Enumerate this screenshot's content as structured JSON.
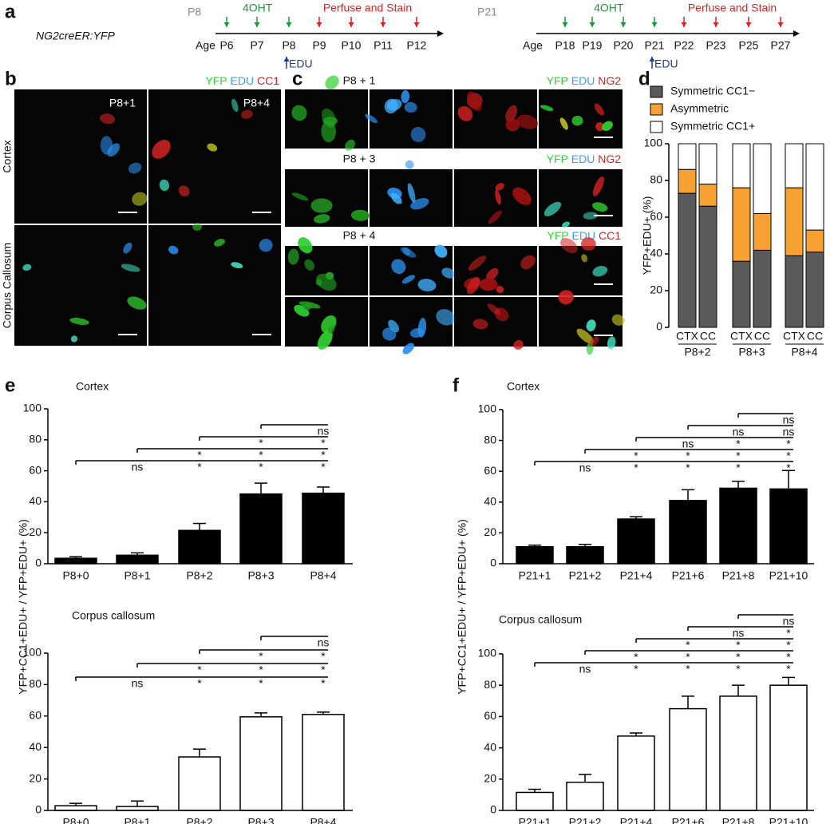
{
  "panel_a": {
    "label": "a",
    "genotype": "NG2creER:YFP",
    "timelines": [
      {
        "title": "P8",
        "injection": "4OHT",
        "perfusion": "Perfuse and Stain",
        "axis_label": "Age",
        "ages": [
          "P6",
          "P7",
          "P8",
          "P9",
          "P10",
          "P11",
          "P12"
        ],
        "pulse": "EDU"
      },
      {
        "title": "P21",
        "injection": "4OHT",
        "perfusion": "Perfuse and Stain",
        "axis_label": "Age",
        "ages": [
          "P18",
          "P19",
          "P20",
          "P21",
          "P22",
          "P23",
          "P25",
          "P27"
        ],
        "pulse": "EDU"
      }
    ]
  },
  "panel_b": {
    "label": "b",
    "stains": [
      "YFP",
      "EDU",
      "CC1"
    ],
    "columns": [
      "P8+1",
      "P8+4"
    ],
    "rows": [
      "Cortex",
      "Corpus Callosum"
    ]
  },
  "panel_c": {
    "label": "c",
    "rows": [
      {
        "title": "P8 + 1",
        "stains": [
          "YFP",
          "EDU",
          "NG2"
        ]
      },
      {
        "title": "P8 + 3",
        "stains": [
          "YFP",
          "EDU",
          "NG2"
        ]
      },
      {
        "title": "P8 + 4",
        "stains": [
          "YFP",
          "EDU",
          "CC1"
        ]
      }
    ]
  },
  "chart_data": [
    {
      "panel": "d",
      "type": "stacked-bar",
      "ylabel": "YFP+EDU+ (%)",
      "categories": [
        "CTX",
        "CC",
        "CTX",
        "CC",
        "CTX",
        "CC"
      ],
      "groups": [
        "P8+2",
        "P8+3",
        "P8+4"
      ],
      "series": [
        {
          "name": "Symmetric CC1−",
          "color": "#5a5a5a",
          "values": [
            73,
            66,
            36,
            42,
            39,
            41
          ]
        },
        {
          "name": "Asymmetric",
          "color": "#f7a133",
          "values": [
            13,
            12,
            40,
            20,
            37,
            12
          ]
        },
        {
          "name": "Symmetric CC1+",
          "color": "#ffffff",
          "values": [
            14,
            22,
            24,
            38,
            24,
            47
          ]
        }
      ],
      "ylim": [
        0,
        100
      ],
      "yticks": [
        0,
        20,
        40,
        60,
        80,
        100
      ]
    },
    {
      "panel": "e",
      "type": "bar",
      "title": "Cortex",
      "ylabel": "YFP+CC1+EDU+ / YFP+EDU+ (%)",
      "categories": [
        "P8+0",
        "P8+1",
        "P8+2",
        "P8+3",
        "P8+4"
      ],
      "values": [
        3.5,
        5.5,
        21.5,
        45,
        45.5
      ],
      "errors": [
        1,
        1.5,
        4.5,
        7,
        4
      ],
      "color": "#000000",
      "ylim": [
        0,
        100
      ],
      "yticks": [
        0,
        20,
        40,
        60,
        80,
        100
      ],
      "significance": [
        [
          null,
          "ns",
          "*",
          "*",
          "*"
        ],
        [
          null,
          null,
          "*",
          "*",
          "*"
        ],
        [
          null,
          null,
          null,
          "*",
          "*"
        ],
        [
          null,
          null,
          null,
          null,
          "ns"
        ]
      ]
    },
    {
      "type": "bar",
      "title": "Corpus callosum",
      "categories": [
        "P8+0",
        "P8+1",
        "P8+2",
        "P8+3",
        "P8+4"
      ],
      "values": [
        3,
        2.5,
        34,
        59.5,
        61
      ],
      "errors": [
        1.5,
        3.5,
        5,
        2.5,
        1.5
      ],
      "color": "#ffffff",
      "ylim": [
        0,
        100
      ],
      "yticks": [
        0,
        20,
        40,
        60,
        80,
        100
      ],
      "significance": [
        [
          null,
          "ns",
          "*",
          "*",
          "*"
        ],
        [
          null,
          null,
          "*",
          "*",
          "*"
        ],
        [
          null,
          null,
          null,
          "*",
          "*"
        ],
        [
          null,
          null,
          null,
          null,
          "ns"
        ]
      ]
    },
    {
      "panel": "f",
      "type": "bar",
      "title": "Cortex",
      "ylabel": "YFP+CC1+EDU+ / YFP+EDU+ (%)",
      "categories": [
        "P21+1",
        "P21+2",
        "P21+4",
        "P21+6",
        "P21+8",
        "P21+10"
      ],
      "values": [
        11,
        11,
        29,
        41,
        49,
        48.5
      ],
      "errors": [
        1,
        1.5,
        1.5,
        7,
        4.5,
        12
      ],
      "color": "#000000",
      "ylim": [
        0,
        100
      ],
      "yticks": [
        0,
        20,
        40,
        60,
        80,
        100
      ],
      "significance": [
        [
          null,
          "ns",
          "*",
          "*",
          "*",
          "*"
        ],
        [
          null,
          null,
          "*",
          "*",
          "*",
          "*"
        ],
        [
          null,
          null,
          null,
          "ns",
          "*",
          "*"
        ],
        [
          null,
          null,
          null,
          null,
          "ns",
          "ns"
        ],
        [
          null,
          null,
          null,
          null,
          null,
          "ns"
        ]
      ]
    },
    {
      "type": "bar",
      "title": "Corpus callosum",
      "categories": [
        "P21+1",
        "P21+2",
        "P21+4",
        "P21+6",
        "P21+8",
        "P21+10"
      ],
      "values": [
        11.5,
        18,
        47.5,
        65,
        73,
        80
      ],
      "errors": [
        2,
        5,
        2,
        8,
        7,
        5
      ],
      "color": "#ffffff",
      "ylim": [
        0,
        100
      ],
      "yticks": [
        0,
        20,
        40,
        60,
        80,
        100
      ],
      "significance": [
        [
          null,
          "ns",
          "*",
          "*",
          "*",
          "*"
        ],
        [
          null,
          null,
          "*",
          "*",
          "*",
          "*"
        ],
        [
          null,
          null,
          null,
          "*",
          "*",
          "*"
        ],
        [
          null,
          null,
          null,
          null,
          "ns",
          "*"
        ],
        [
          null,
          null,
          null,
          null,
          null,
          "ns"
        ]
      ]
    }
  ]
}
